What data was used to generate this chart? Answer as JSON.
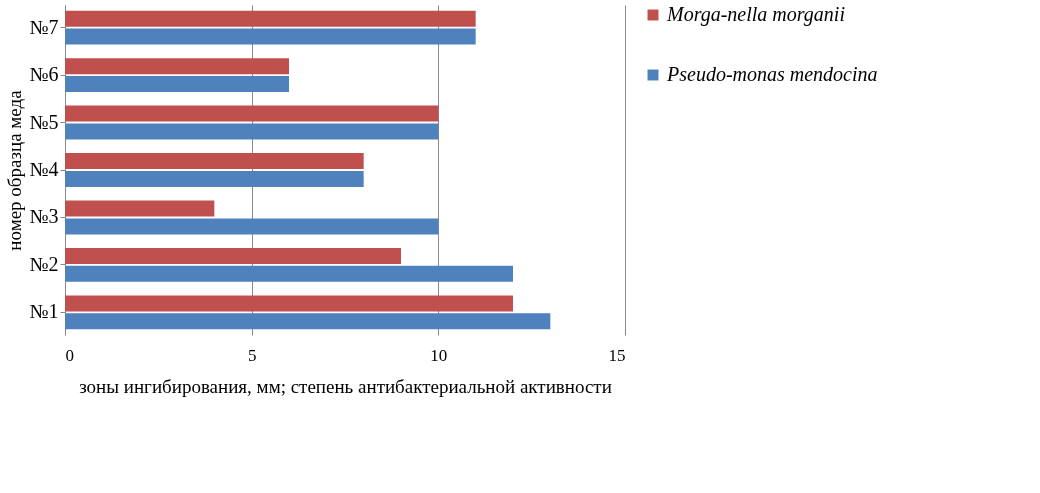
{
  "chart_data": {
    "type": "bar",
    "orientation": "horizontal",
    "xlabel": "зоны ингибирования, мм; степень антибактериальной активности",
    "ylabel": "номер образца меда",
    "categories": [
      "№7",
      "№6",
      "№5",
      "№4",
      "№3",
      "№2",
      "№1"
    ],
    "series": [
      {
        "name": "Morga-nella morganii",
        "color": "#c0504d",
        "values": [
          11,
          6,
          10,
          8,
          4,
          9,
          12
        ]
      },
      {
        "name": "Pseudo-monas mendocina",
        "color": "#4f81bd",
        "values": [
          11,
          6,
          10,
          8,
          10,
          12,
          13
        ]
      }
    ],
    "xlim": [
      0,
      15
    ],
    "xticks": [
      0,
      5,
      10,
      15
    ],
    "grid": "x",
    "legend": "right"
  }
}
